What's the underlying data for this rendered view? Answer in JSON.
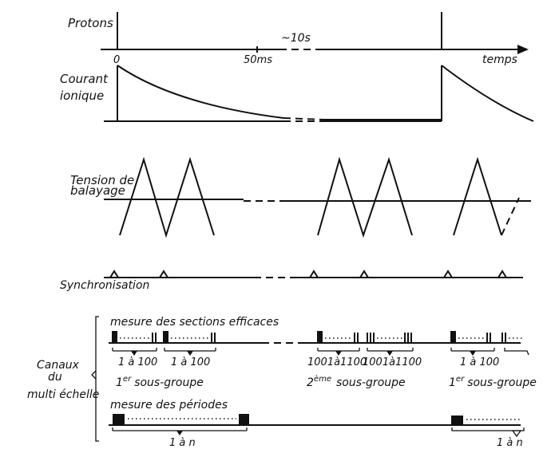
{
  "labels": {
    "protons": "Protons",
    "tick_0": "0",
    "tick_50ms": "50ms",
    "tick_10s": "~10s",
    "temps": "temps",
    "courant_1": "Courant",
    "courant_2": "ionique",
    "tension_1": "Tension de",
    "tension_2": "balayage",
    "synchronisation": "Synchronisation",
    "canaux_1": "Canaux",
    "canaux_2": "du",
    "canaux_3": "multi échelle",
    "mesure_sections": "mesure des sections efficaces",
    "range_a": "1 à 100",
    "range_b": "1 à 100",
    "range_c": "1001à1100",
    "range_d": "1001à1100",
    "range_e": "1 à 100",
    "sous_groupe_1_num": "1",
    "sous_groupe_1_sup": "er",
    "sous_groupe_1_txt": "sous-groupe",
    "sous_groupe_2_num": "2",
    "sous_groupe_2_sup": "ème",
    "sous_groupe_2_txt": "sous-groupe",
    "sous_groupe_3_num": "1",
    "sous_groupe_3_sup": "er",
    "sous_groupe_3_txt": "sous-groupe",
    "mesure_periodes": "mesure des périodes",
    "range_n1": "1 à  n",
    "range_n2": "1 à  n"
  }
}
